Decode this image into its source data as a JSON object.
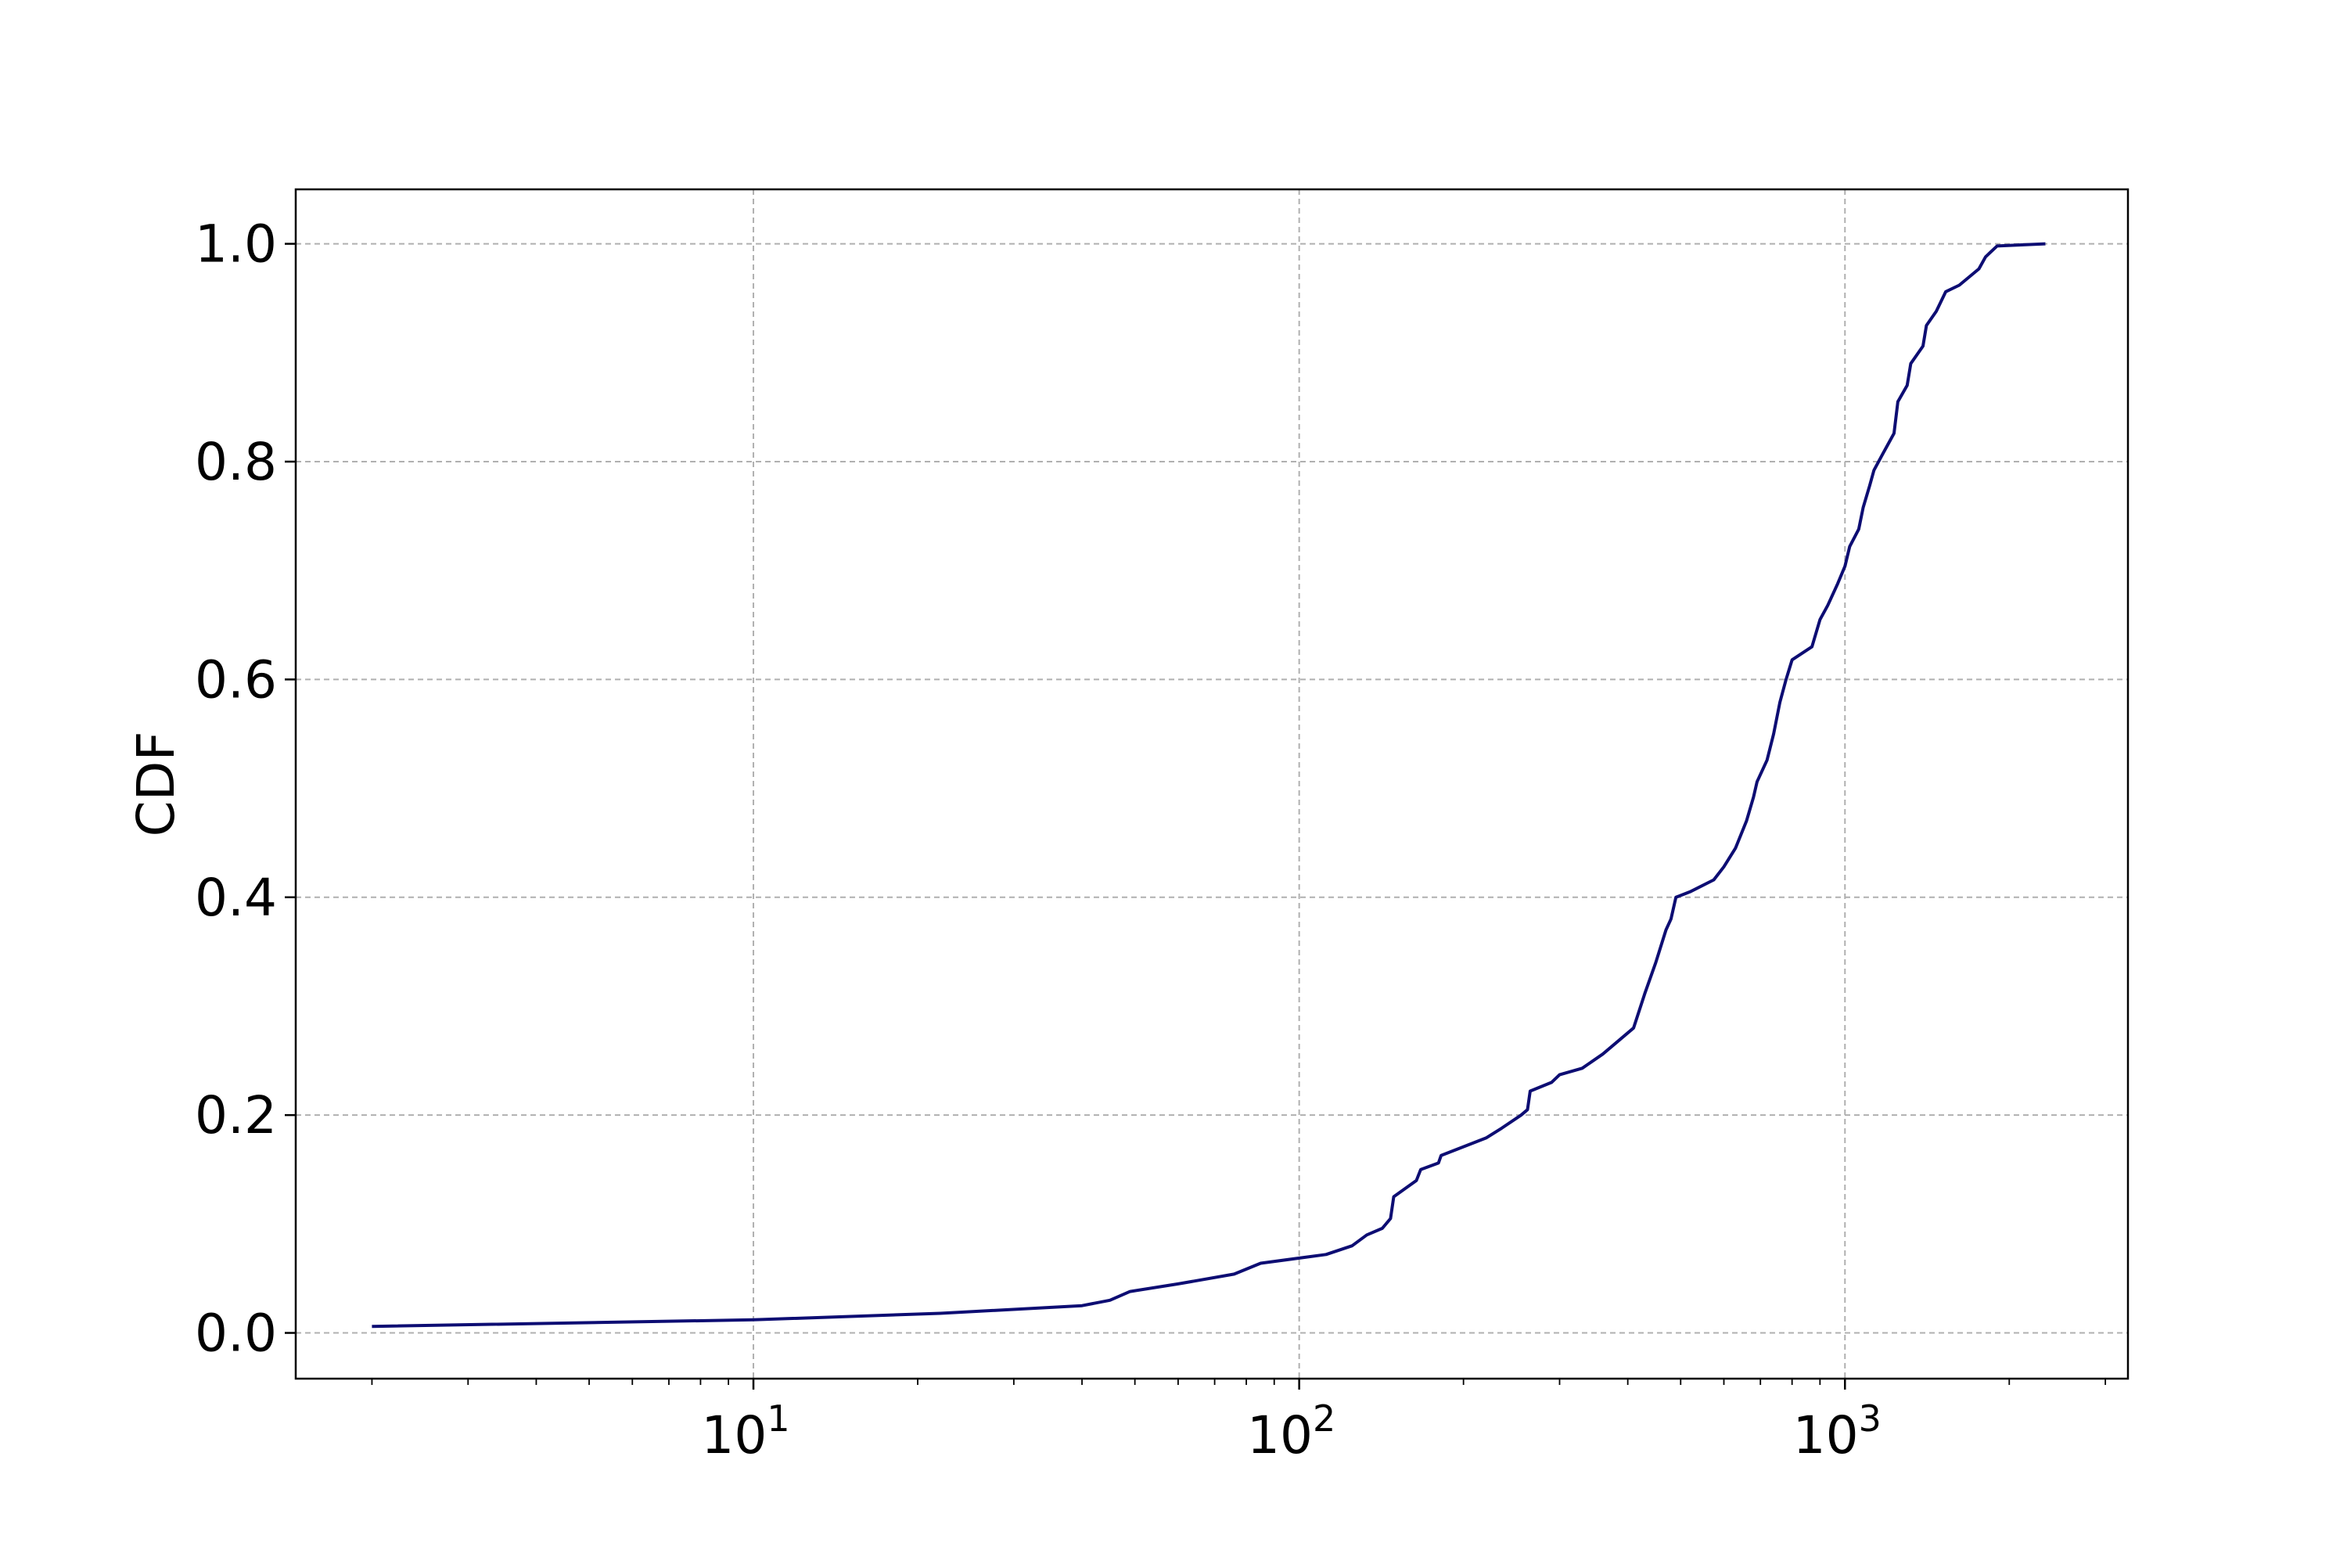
{
  "chart_data": {
    "type": "line",
    "title": "",
    "xlabel": "",
    "ylabel": "CDF",
    "x_scale": "log",
    "xlim": [
      1.45,
      3300
    ],
    "ylim": [
      -0.042,
      1.05
    ],
    "grid": true,
    "x_ticks": [
      {
        "value": 10,
        "base": "10",
        "exp": "1"
      },
      {
        "value": 100,
        "base": "10",
        "exp": "2"
      },
      {
        "value": 1000,
        "base": "10",
        "exp": "3"
      }
    ],
    "y_ticks": [
      {
        "value": 0.0,
        "label": "0.0"
      },
      {
        "value": 0.2,
        "label": "0.2"
      },
      {
        "value": 0.4,
        "label": "0.4"
      },
      {
        "value": 0.6,
        "label": "0.6"
      },
      {
        "value": 0.8,
        "label": "0.8"
      },
      {
        "value": 1.0,
        "label": "1.0"
      }
    ],
    "series": [
      {
        "color": "#0d0d73",
        "x": [
          2,
          10,
          22,
          40,
          45,
          49,
          60,
          76,
          85,
          112,
          125,
          133,
          142,
          147,
          149,
          164,
          167,
          180,
          182,
          220,
          235,
          255,
          262,
          265,
          290,
          300,
          330,
          360,
          380,
          410,
          430,
          440,
          450,
          470,
          480,
          490,
          520,
          575,
          600,
          630,
          660,
          680,
          690,
          720,
          740,
          760,
          780,
          800,
          870,
          900,
          930,
          970,
          1000,
          1020,
          1060,
          1080,
          1110,
          1130,
          1170,
          1230,
          1250,
          1300,
          1320,
          1390,
          1410,
          1470,
          1530,
          1620,
          1760,
          1810,
          1900,
          2330
        ],
        "y": [
          0.006,
          0.012,
          0.018,
          0.025,
          0.03,
          0.038,
          0.045,
          0.054,
          0.064,
          0.072,
          0.08,
          0.09,
          0.096,
          0.105,
          0.125,
          0.14,
          0.15,
          0.156,
          0.163,
          0.179,
          0.188,
          0.2,
          0.205,
          0.222,
          0.23,
          0.237,
          0.243,
          0.256,
          0.266,
          0.28,
          0.312,
          0.326,
          0.34,
          0.37,
          0.38,
          0.4,
          0.405,
          0.416,
          0.428,
          0.445,
          0.47,
          0.492,
          0.506,
          0.526,
          0.55,
          0.579,
          0.6,
          0.618,
          0.63,
          0.655,
          0.668,
          0.688,
          0.704,
          0.722,
          0.738,
          0.758,
          0.778,
          0.792,
          0.806,
          0.826,
          0.855,
          0.87,
          0.89,
          0.906,
          0.925,
          0.938,
          0.956,
          0.962,
          0.977,
          0.988,
          0.998,
          1.0
        ]
      }
    ]
  }
}
